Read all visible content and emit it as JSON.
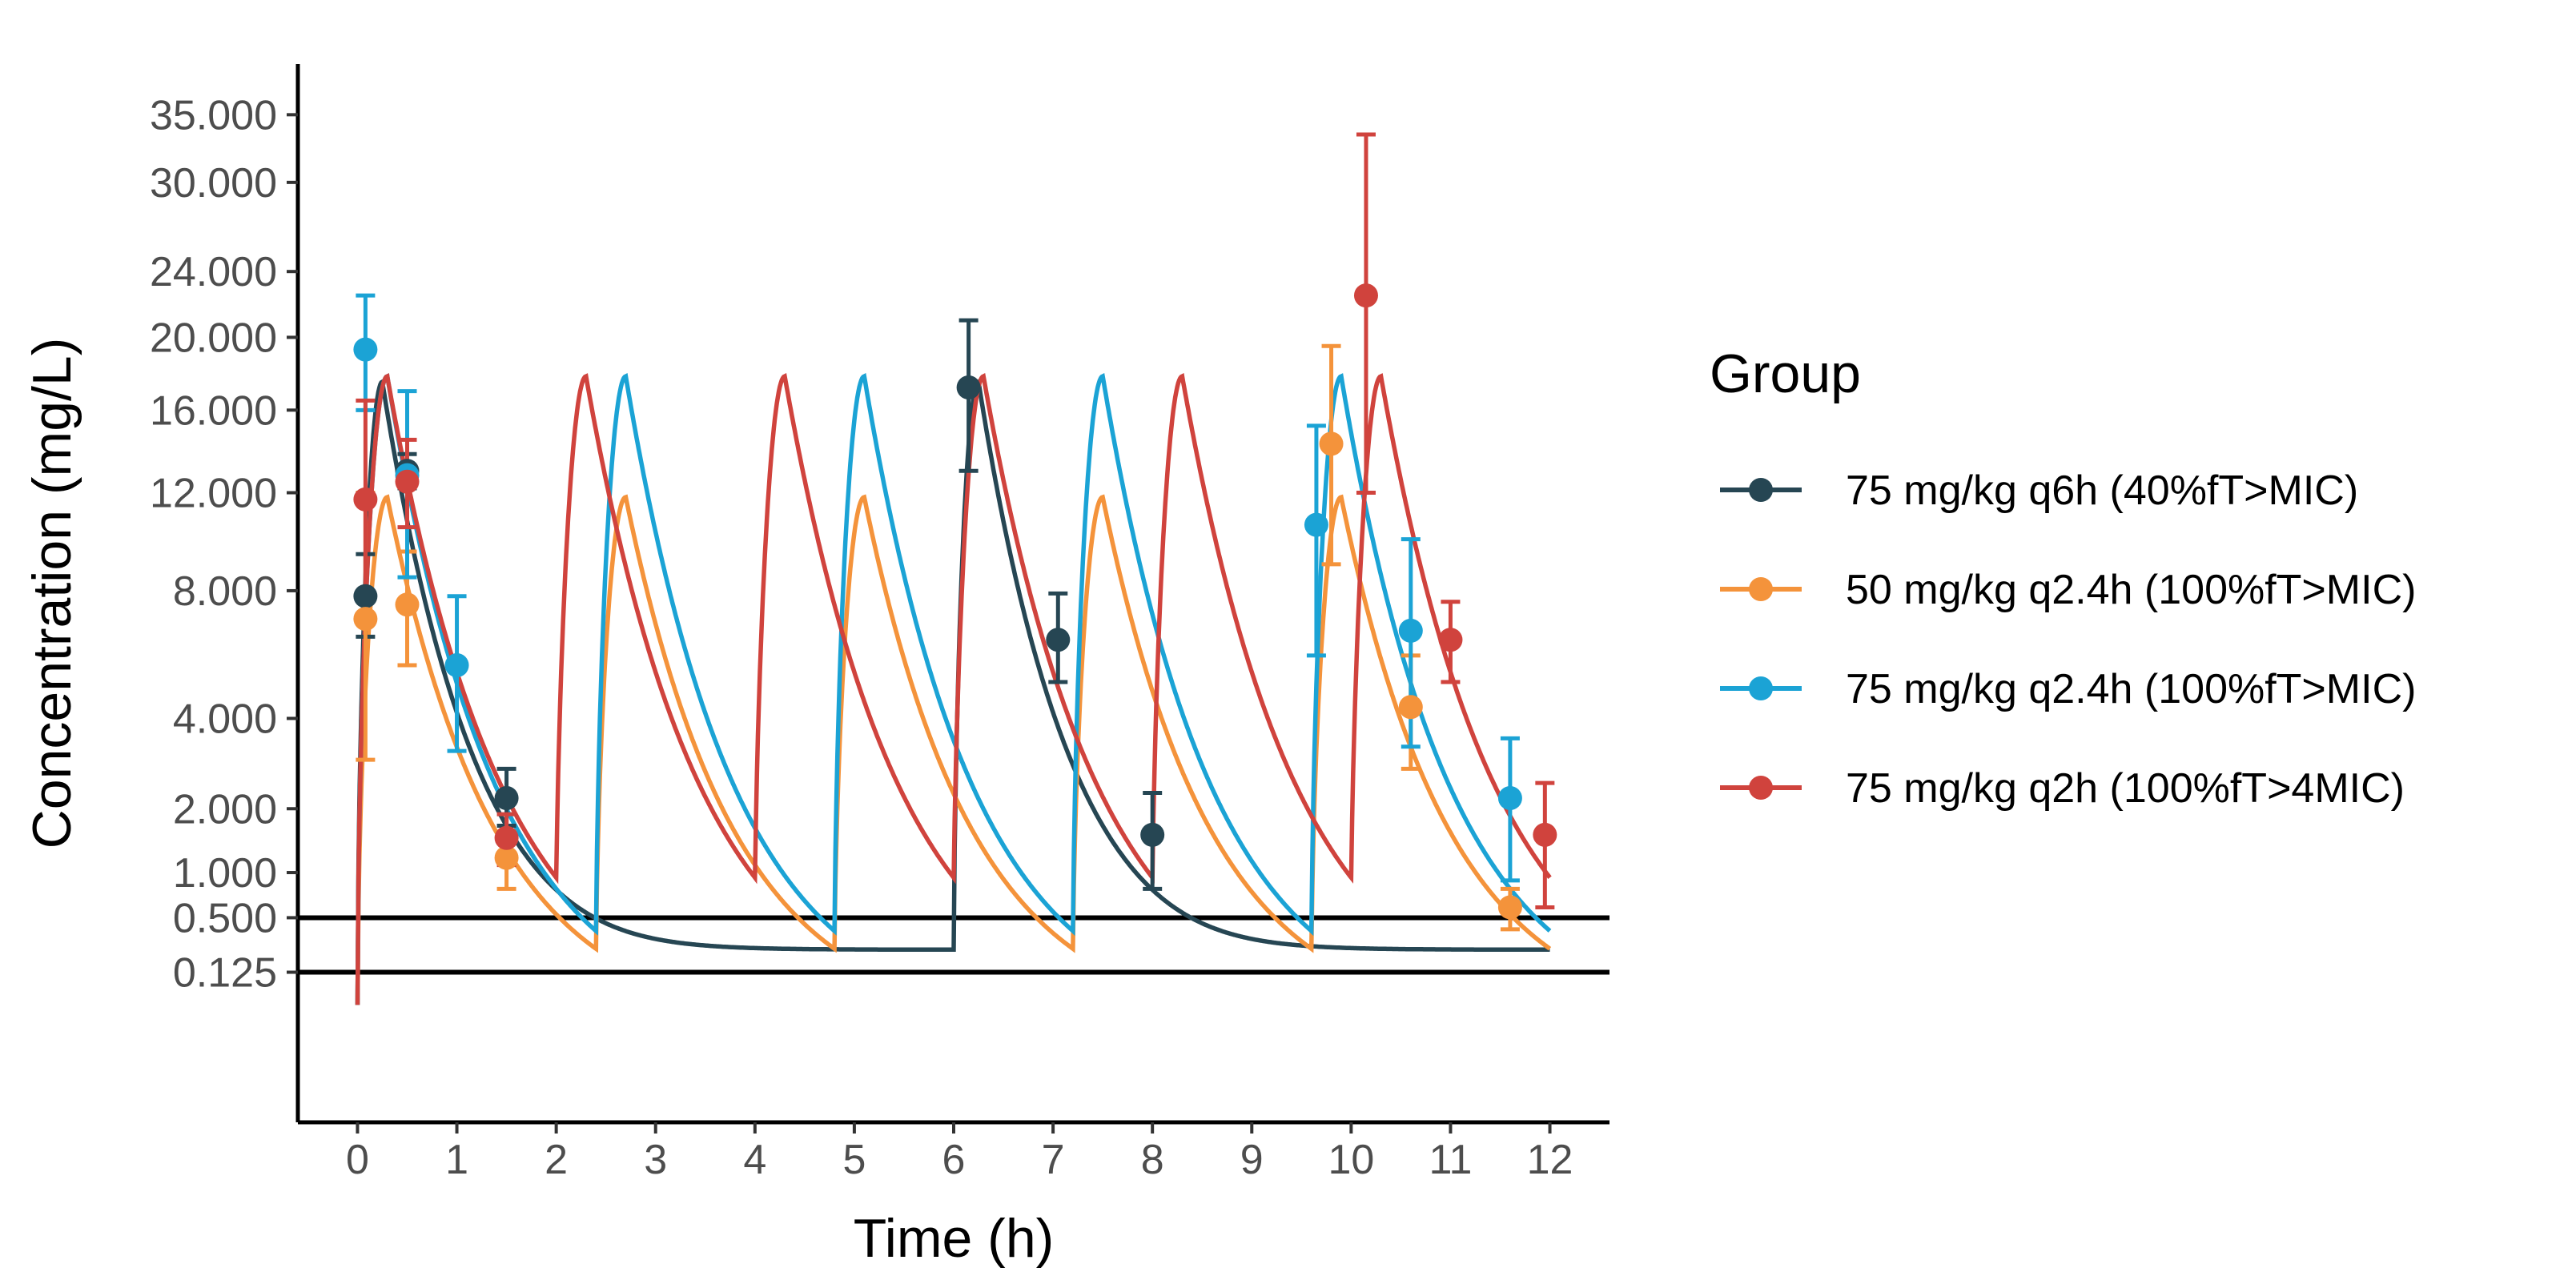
{
  "chart_data": {
    "type": "line",
    "title": "",
    "xlabel": "Time (h)",
    "ylabel": "Concentration (mg/L)",
    "x_ticks": [
      0,
      1,
      2,
      3,
      4,
      5,
      6,
      7,
      8,
      9,
      10,
      11,
      12
    ],
    "y_ticks": [
      {
        "value": 0.125,
        "label": "0.125"
      },
      {
        "value": 0.5,
        "label": "0.500"
      },
      {
        "value": 1,
        "label": "1.000"
      },
      {
        "value": 2,
        "label": "2.000"
      },
      {
        "value": 4,
        "label": "4.000"
      },
      {
        "value": 8,
        "label": "8.000"
      },
      {
        "value": 12,
        "label": "12.000"
      },
      {
        "value": 16,
        "label": "16.000"
      },
      {
        "value": 20,
        "label": "20.000"
      },
      {
        "value": 24,
        "label": "24.000"
      },
      {
        "value": 30,
        "label": "30.000"
      },
      {
        "value": 35,
        "label": "35.000"
      }
    ],
    "y_scale": "sqrt",
    "xlim": [
      -0.6,
      12.6
    ],
    "ylim": [
      -0.62,
      39
    ],
    "hlines": [
      0.5,
      0.125
    ],
    "legend": {
      "title": "Group",
      "position": "right"
    },
    "series": [
      {
        "name": "75 mg/kg q6h (40%fT>MIC)",
        "color": "#264653",
        "dose_times": [
          0,
          6
        ],
        "dose_peak": 17.5,
        "tmax": 0.25,
        "half_life": 0.35,
        "floor": 0.25,
        "points": [
          {
            "t": 0.08,
            "y": 7.8,
            "lo": 6.4,
            "hi": 9.4
          },
          {
            "t": 0.5,
            "y": 13.0,
            "lo": 12.2,
            "hi": 13.8
          },
          {
            "t": 1.5,
            "y": 2.2,
            "lo": 1.7,
            "hi": 2.8
          },
          {
            "t": 6.15,
            "y": 17.2,
            "lo": 13.0,
            "hi": 21.0
          },
          {
            "t": 7.05,
            "y": 6.3,
            "lo": 5.0,
            "hi": 7.9
          },
          {
            "t": 8.0,
            "y": 1.55,
            "lo": 0.8,
            "hi": 2.3
          }
        ]
      },
      {
        "name": "50 mg/kg q2.4h (100%fT>MIC)",
        "color": "#F4933B",
        "dose_times": [
          0,
          2.4,
          4.8,
          7.2,
          9.6
        ],
        "dose_peak": 11.8,
        "tmax": 0.3,
        "half_life": 0.38,
        "floor": 0,
        "points": [
          {
            "t": 0.08,
            "y": 7.0,
            "lo": 3.0,
            "hi": 12.0
          },
          {
            "t": 0.5,
            "y": 7.5,
            "lo": 5.5,
            "hi": 9.5
          },
          {
            "t": 1.5,
            "y": 1.2,
            "lo": 0.8,
            "hi": 1.6
          },
          {
            "t": 9.8,
            "y": 14.3,
            "lo": 9.0,
            "hi": 19.5
          },
          {
            "t": 10.6,
            "y": 4.3,
            "lo": 2.8,
            "hi": 5.8
          },
          {
            "t": 11.6,
            "y": 0.6,
            "lo": 0.4,
            "hi": 0.8
          }
        ]
      },
      {
        "name": "75 mg/kg q2.4h (100%fT>MIC)",
        "color": "#1BA3D5",
        "dose_times": [
          0,
          2.4,
          4.8,
          7.2,
          9.6
        ],
        "dose_peak": 17.8,
        "tmax": 0.3,
        "half_life": 0.38,
        "floor": 0,
        "points": [
          {
            "t": 0.08,
            "y": 19.3,
            "lo": 16.0,
            "hi": 22.5
          },
          {
            "t": 0.5,
            "y": 12.8,
            "lo": 8.5,
            "hi": 17.0
          },
          {
            "t": 1.0,
            "y": 5.5,
            "lo": 3.2,
            "hi": 7.8
          },
          {
            "t": 9.65,
            "y": 10.6,
            "lo": 5.8,
            "hi": 15.2
          },
          {
            "t": 10.6,
            "y": 6.6,
            "lo": 3.3,
            "hi": 10.0
          },
          {
            "t": 11.6,
            "y": 2.2,
            "lo": 0.9,
            "hi": 3.5
          }
        ]
      },
      {
        "name": "75 mg/kg q2h (100%fT>4MIC)",
        "color": "#D0433D",
        "dose_times": [
          0,
          2,
          4,
          6,
          8,
          10
        ],
        "dose_peak": 17.8,
        "tmax": 0.3,
        "half_life": 0.4,
        "floor": 0,
        "points": [
          {
            "t": 0.08,
            "y": 11.7,
            "lo": 7.0,
            "hi": 16.5
          },
          {
            "t": 0.5,
            "y": 12.5,
            "lo": 10.5,
            "hi": 14.5
          },
          {
            "t": 1.5,
            "y": 1.5,
            "lo": 1.1,
            "hi": 1.9
          },
          {
            "t": 10.15,
            "y": 22.5,
            "lo": 12.0,
            "hi": 33.5
          },
          {
            "t": 11.0,
            "y": 6.3,
            "lo": 5.0,
            "hi": 7.6
          },
          {
            "t": 11.95,
            "y": 1.55,
            "lo": 0.6,
            "hi": 2.5
          }
        ]
      }
    ]
  }
}
